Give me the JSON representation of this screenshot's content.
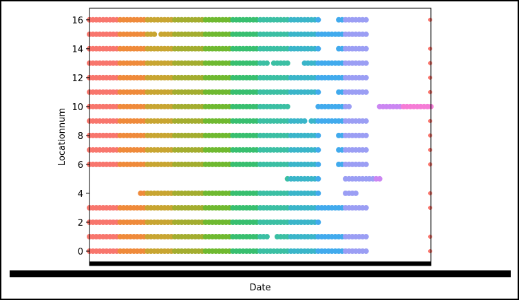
{
  "chart_data": {
    "type": "scatter",
    "xlabel": "Date",
    "ylabel": "Locationnum",
    "yticks": [
      0,
      2,
      4,
      6,
      8,
      10,
      12,
      14,
      16
    ],
    "ylim": [
      -1,
      16.8
    ],
    "xlim": [
      0,
      1
    ],
    "x_tick_labels_overlapping": true,
    "grid": false,
    "legend": "none",
    "palette": [
      "#f8766d",
      "#ef8a3a",
      "#c8a531",
      "#a3ad2f",
      "#6fb930",
      "#38bf6f",
      "#3bbfa3",
      "#3ab5c9",
      "#41aaed",
      "#9b9ef4",
      "#cb86f2",
      "#f57cd6"
    ],
    "series": [
      {
        "y": 0,
        "segments": [
          [
            0.0,
            0.03
          ],
          [
            0.04,
            0.81
          ]
        ]
      },
      {
        "y": 1,
        "segments": [
          [
            0.0,
            0.52
          ],
          [
            0.55,
            0.81
          ]
        ]
      },
      {
        "y": 2,
        "segments": [
          [
            0.0,
            0.67
          ]
        ]
      },
      {
        "y": 3,
        "segments": [
          [
            0.0,
            0.81
          ]
        ]
      },
      {
        "y": 4,
        "segments": [
          [
            0.15,
            0.67
          ],
          [
            0.75,
            0.78
          ]
        ]
      },
      {
        "y": 5,
        "segments": [
          [
            0.58,
            0.67
          ],
          [
            0.75,
            0.85
          ]
        ]
      },
      {
        "y": 6,
        "segments": [
          [
            0.0,
            0.41
          ],
          [
            0.41,
            0.67
          ],
          [
            0.73,
            0.81
          ]
        ]
      },
      {
        "y": 7,
        "segments": [
          [
            0.0,
            0.67
          ],
          [
            0.73,
            0.81
          ]
        ]
      },
      {
        "y": 8,
        "segments": [
          [
            0.0,
            0.67
          ],
          [
            0.73,
            0.81
          ]
        ]
      },
      {
        "y": 9,
        "segments": [
          [
            0.0,
            0.63
          ],
          [
            0.65,
            0.81
          ]
        ]
      },
      {
        "y": 10,
        "segments": [
          [
            0.0,
            0.58
          ],
          [
            0.67,
            0.76
          ],
          [
            0.85,
            1.0
          ]
        ]
      },
      {
        "y": 11,
        "segments": [
          [
            0.0,
            0.67
          ],
          [
            0.73,
            0.81
          ]
        ]
      },
      {
        "y": 12,
        "segments": [
          [
            0.0,
            0.81
          ]
        ]
      },
      {
        "y": 13,
        "segments": [
          [
            0.0,
            0.52
          ],
          [
            0.54,
            0.58
          ],
          [
            0.63,
            0.81
          ]
        ]
      },
      {
        "y": 14,
        "segments": [
          [
            0.0,
            0.67
          ],
          [
            0.73,
            0.81
          ]
        ]
      },
      {
        "y": 15,
        "segments": [
          [
            0.0,
            0.17
          ],
          [
            0.18,
            0.19
          ],
          [
            0.21,
            0.81
          ]
        ]
      },
      {
        "y": 16,
        "segments": [
          [
            0.0,
            0.67
          ],
          [
            0.73,
            0.81
          ]
        ]
      }
    ],
    "edge_points": {
      "x": 1.0,
      "y": [
        0,
        1,
        3,
        4,
        6,
        7,
        8,
        9,
        11,
        12,
        13,
        14,
        16
      ]
    }
  }
}
